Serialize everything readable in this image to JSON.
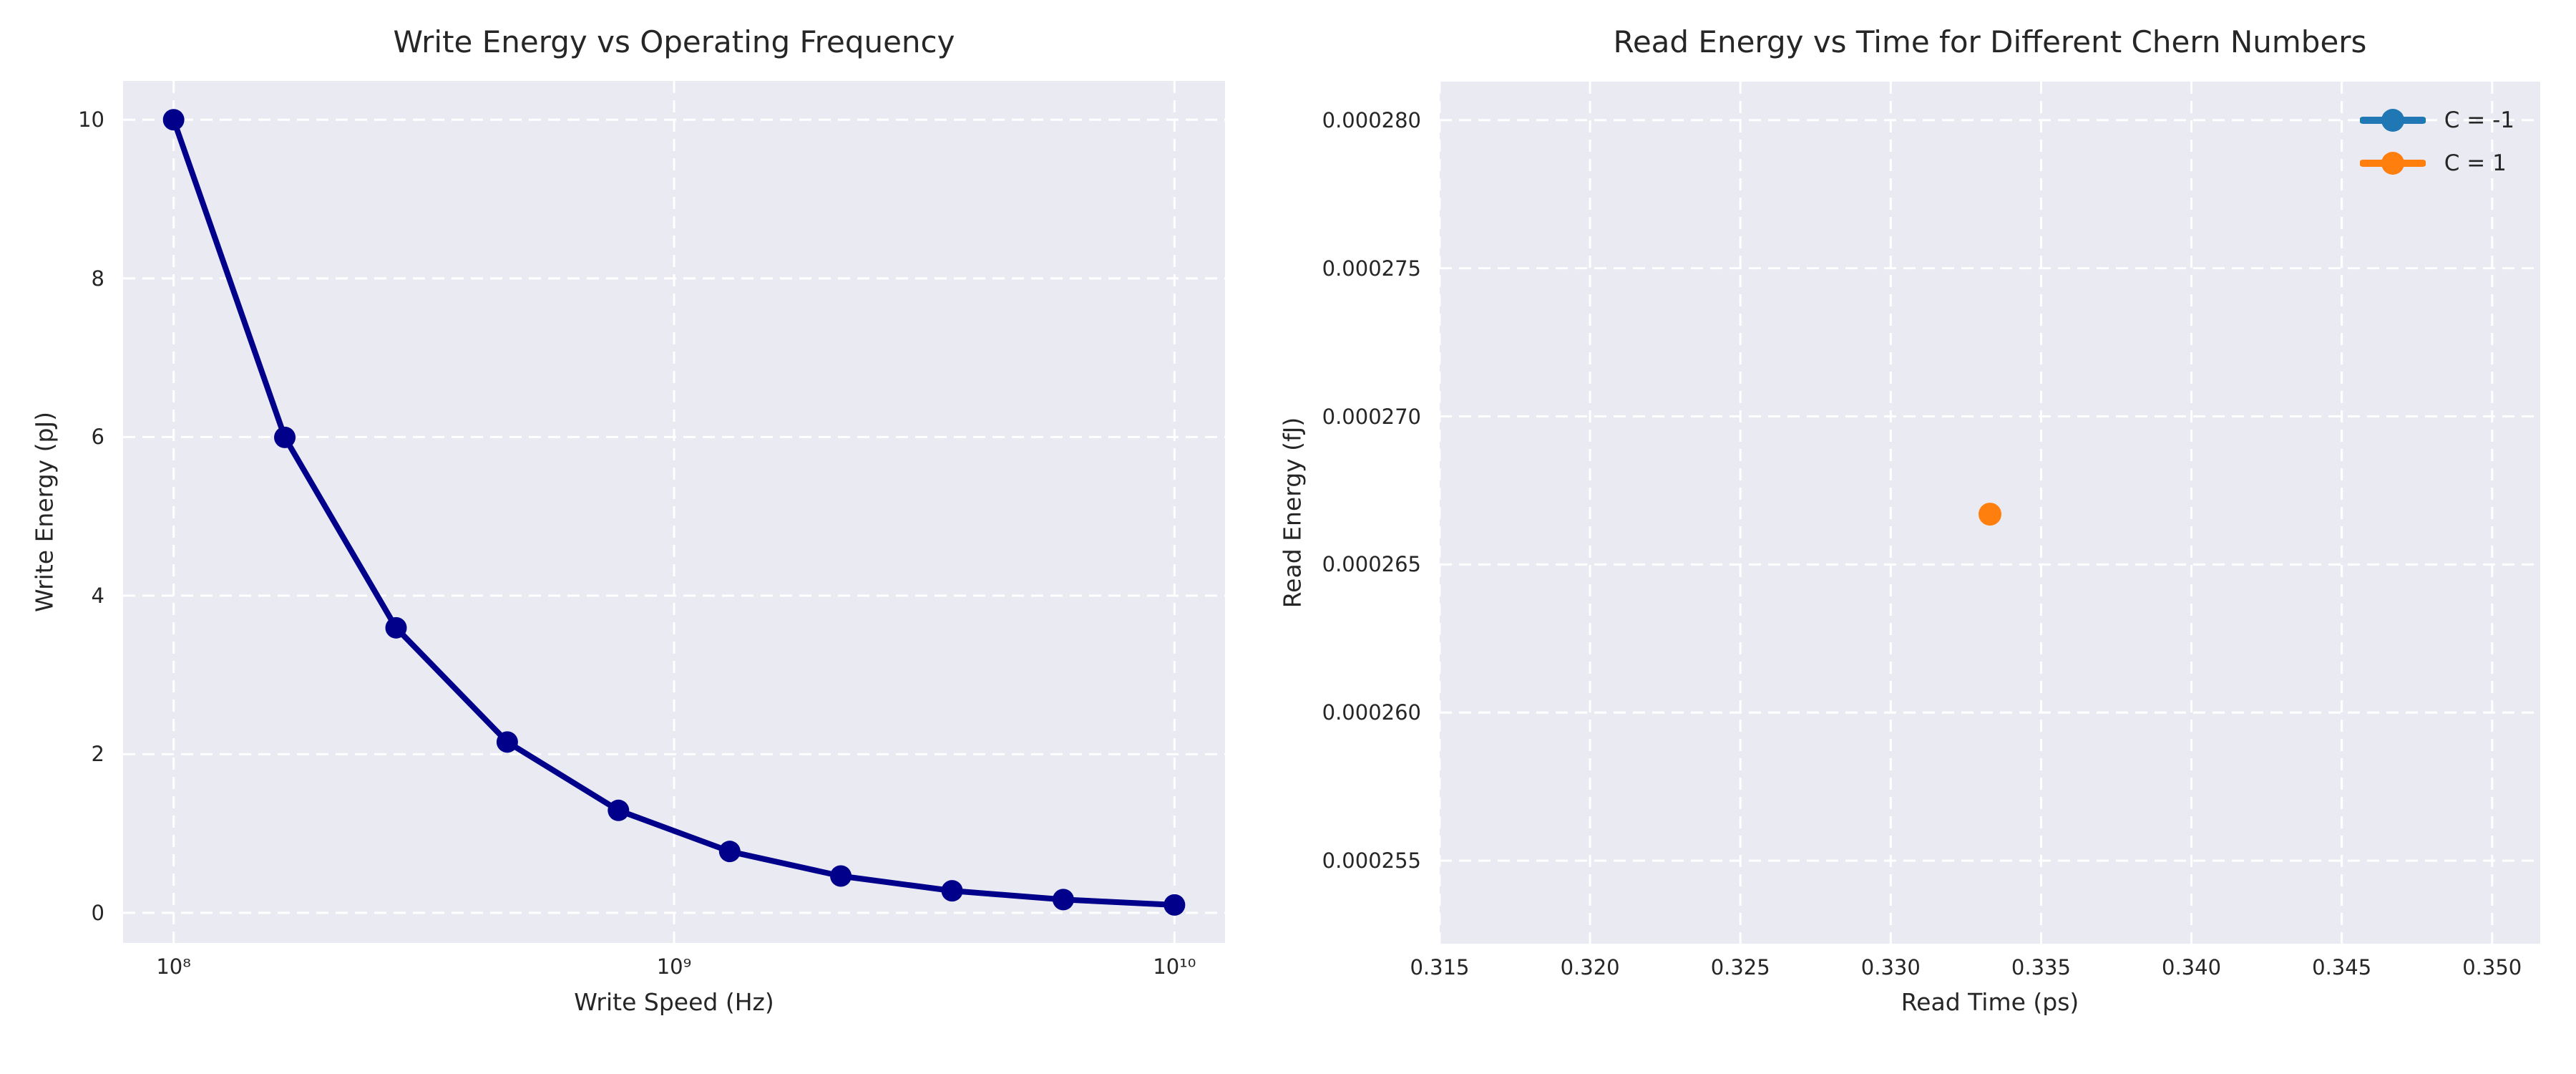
{
  "style": {
    "figure_bg": "#ffffff",
    "axes_bg": "#eaeaf2",
    "grid_color": "#ffffff",
    "text_color": "#262626"
  },
  "chart_data": [
    {
      "type": "line",
      "title": "Write Energy vs Operating Frequency",
      "xlabel": "Write Speed (Hz)",
      "ylabel": "Write Energy (pJ)",
      "xscale": "log",
      "x": [
        100000000,
        166800000,
        278300000,
        464200000,
        774300000,
        1292000000,
        2154000000,
        3594000000,
        5995000000,
        10000000000
      ],
      "y": [
        10.0,
        5.995,
        3.594,
        2.154,
        1.292,
        0.774,
        0.464,
        0.278,
        0.167,
        0.1
      ],
      "line_color": "#00008B",
      "marker": "circle",
      "grid": true,
      "xlim_log10": [
        7.899,
        10.101
      ],
      "ylim": [
        -0.38,
        10.49
      ],
      "xticks": {
        "values": [
          100000000,
          1000000000,
          10000000000
        ],
        "labels": [
          "10⁸",
          "10⁹",
          "10¹⁰"
        ]
      },
      "yticks": {
        "values": [
          0,
          2,
          4,
          6,
          8,
          10
        ],
        "labels": [
          "0",
          "2",
          "4",
          "6",
          "8",
          "10"
        ]
      }
    },
    {
      "type": "scatter",
      "title": "Read Energy vs Time for Different Chern Numbers",
      "xlabel": "Read Time (ps)",
      "ylabel": "Read Energy (fJ)",
      "grid": true,
      "xlim": [
        0.315,
        0.3516
      ],
      "ylim": [
        0.0002522,
        0.0002813
      ],
      "series": [
        {
          "name": "C = -1",
          "color": "#1f77b4",
          "points": []
        },
        {
          "name": "C = 1",
          "color": "#ff7f0e",
          "points": [
            [
              0.3333,
              0.0002667
            ]
          ]
        }
      ],
      "legend": {
        "position": "upper right",
        "labels": [
          "C = -1",
          "C = 1"
        ]
      },
      "xticks": {
        "values": [
          0.315,
          0.32,
          0.325,
          0.33,
          0.335,
          0.34,
          0.345,
          0.35
        ],
        "labels": [
          "0.315",
          "0.320",
          "0.325",
          "0.330",
          "0.335",
          "0.340",
          "0.345",
          "0.350"
        ]
      },
      "yticks": {
        "values": [
          0.000255,
          0.00026,
          0.000265,
          0.00027,
          0.000275,
          0.00028
        ],
        "labels": [
          "0.000255",
          "0.000260",
          "0.000265",
          "0.000270",
          "0.000275",
          "0.000280"
        ]
      }
    }
  ]
}
